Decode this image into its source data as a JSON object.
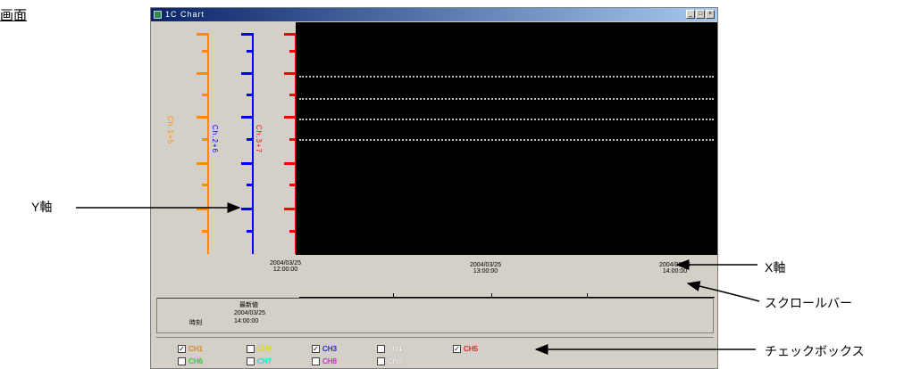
{
  "page_heading": "画面",
  "window": {
    "title": "1C Chart",
    "buttons": [
      "_",
      "□",
      "×"
    ]
  },
  "y_axes": [
    {
      "label": "Ch.1+5",
      "color": "#ff8c00"
    },
    {
      "label": "Ch.2+6",
      "color": "#0000ff"
    },
    {
      "label": "Ch.3+7",
      "color": "#ff0000"
    }
  ],
  "x_labels": [
    {
      "line1": "2004/03/25",
      "line2": "12:00:00"
    },
    {
      "line1": "2004/03/25",
      "line2": "13:00:00"
    },
    {
      "line1": "2004/03/25",
      "line2": "14:00:00"
    }
  ],
  "info": {
    "line1": "最新値",
    "line2": "2004/03/25",
    "line3": "14:00:00",
    "label": "時刻"
  },
  "checkboxes": [
    {
      "label": "CH1",
      "checked": true,
      "color": "#ff8c00"
    },
    {
      "label": "CH2",
      "checked": false,
      "color": "#ffff00"
    },
    {
      "label": "CH3",
      "checked": true,
      "color": "#0000ff"
    },
    {
      "label": "CH4",
      "checked": false,
      "color": "#ffffff"
    },
    {
      "label": "CH5",
      "checked": true,
      "color": "#ff0000"
    },
    {
      "label": "CH6",
      "checked": false,
      "color": "#00ff00"
    },
    {
      "label": "CH7",
      "checked": false,
      "color": "#00ffff"
    },
    {
      "label": "CH8",
      "checked": false,
      "color": "#ff00ff"
    },
    {
      "label": "CH9",
      "checked": false,
      "color": "#ffffff"
    }
  ],
  "callouts": {
    "y_axis": "Y軸",
    "x_axis": "X軸",
    "scrollbar": "スクロールバー",
    "checkbox": "チェックボックス"
  }
}
